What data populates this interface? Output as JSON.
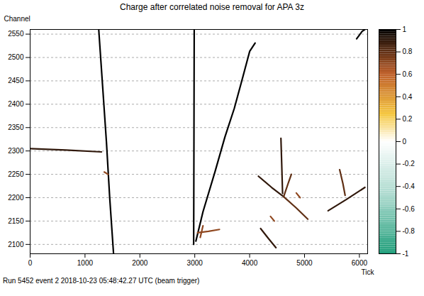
{
  "chart_data": {
    "type": "heatmap",
    "title": "Charge after correlated noise removal for APA 3z",
    "caption": "Run 5452 event 2 2018-10-23 05:48:42.27 UTC (beam trigger)",
    "x_label": "Tick",
    "y_label": "Channel",
    "xlim": [
      0,
      6150
    ],
    "ylim": [
      2080,
      2560
    ],
    "xticks": [
      0,
      1000,
      2000,
      3000,
      4000,
      5000,
      6000
    ],
    "yticks": [
      2100,
      2150,
      2200,
      2250,
      2300,
      2350,
      2400,
      2450,
      2500,
      2550
    ],
    "grid": true,
    "colorbar": {
      "range": [
        -1,
        1
      ],
      "ticks": [
        -1,
        -0.8,
        -0.6,
        -0.4,
        -0.2,
        0,
        0.2,
        0.4,
        0.6,
        0.8,
        1
      ]
    },
    "tracks": [
      {
        "value": 1,
        "points": [
          [
            1250,
            2560
          ],
          [
            1320,
            2440
          ],
          [
            1390,
            2320
          ],
          [
            1450,
            2200
          ],
          [
            1520,
            2080
          ]
        ]
      },
      {
        "value": 0.9,
        "points": [
          [
            0,
            2305
          ],
          [
            650,
            2302
          ],
          [
            1300,
            2298
          ]
        ]
      },
      {
        "value": 1,
        "points": [
          [
            2990,
            2560
          ],
          [
            2985,
            2320
          ],
          [
            2980,
            2100
          ]
        ]
      },
      {
        "value": 1,
        "points": [
          [
            3020,
            2107
          ],
          [
            3150,
            2170
          ],
          [
            3370,
            2256
          ],
          [
            3550,
            2330
          ],
          [
            3720,
            2391
          ],
          [
            3880,
            2460
          ],
          [
            4000,
            2513
          ],
          [
            4100,
            2531
          ]
        ]
      },
      {
        "value": 0.9,
        "points": [
          [
            4570,
            2327
          ],
          [
            4585,
            2270
          ],
          [
            4600,
            2209
          ]
        ]
      },
      {
        "value": 0.9,
        "points": [
          [
            4160,
            2246
          ],
          [
            4400,
            2222
          ],
          [
            4620,
            2202
          ]
        ]
      },
      {
        "value": 0.8,
        "points": [
          [
            4620,
            2202
          ],
          [
            4850,
            2178
          ],
          [
            5060,
            2154
          ]
        ]
      },
      {
        "value": 0.8,
        "points": [
          [
            4620,
            2202
          ],
          [
            4700,
            2230
          ],
          [
            4760,
            2250
          ]
        ]
      },
      {
        "value": 0.9,
        "points": [
          [
            5430,
            2172
          ],
          [
            5760,
            2196
          ],
          [
            6100,
            2222
          ]
        ]
      },
      {
        "value": 0.8,
        "points": [
          [
            5640,
            2260
          ],
          [
            5700,
            2230
          ],
          [
            5740,
            2205
          ]
        ]
      },
      {
        "value": 0.9,
        "points": [
          [
            4200,
            2134
          ],
          [
            4340,
            2113
          ],
          [
            4480,
            2093
          ]
        ]
      },
      {
        "value": 1,
        "points": [
          [
            5950,
            2540
          ],
          [
            6050,
            2556
          ],
          [
            6100,
            2560
          ]
        ]
      },
      {
        "value": 0.7,
        "points": [
          [
            3050,
            2125
          ],
          [
            3250,
            2128
          ],
          [
            3450,
            2132
          ]
        ]
      },
      {
        "value": 0.7,
        "points": [
          [
            3100,
            2115
          ],
          [
            3150,
            2140
          ]
        ]
      },
      {
        "value": 0.7,
        "points": [
          [
            1350,
            2255
          ],
          [
            1420,
            2250
          ]
        ]
      },
      {
        "value": 0.7,
        "points": [
          [
            4380,
            2160
          ],
          [
            4450,
            2150
          ]
        ]
      },
      {
        "value": 0.7,
        "points": [
          [
            4850,
            2210
          ],
          [
            4920,
            2200
          ]
        ]
      }
    ]
  }
}
